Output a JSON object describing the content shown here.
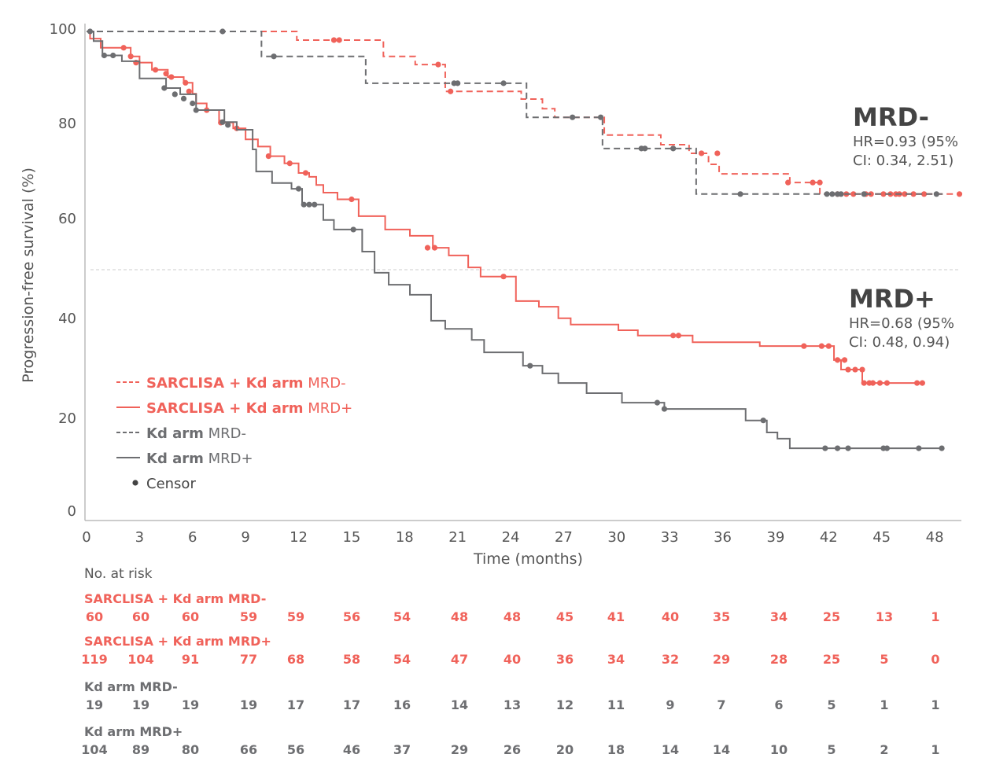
{
  "chart_data": {
    "type": "line",
    "subtype": "kaplan-meier step",
    "xlabel": "Time (months)",
    "ylabel": "Progression-free survival (%)",
    "xlim": [
      0,
      49.5
    ],
    "ylim": [
      0,
      100
    ],
    "xticks": [
      0,
      3,
      6,
      9,
      12,
      15,
      18,
      21,
      24,
      27,
      30,
      33,
      36,
      39,
      42,
      45,
      48
    ],
    "yticks": [
      0,
      20,
      40,
      60,
      80,
      100
    ],
    "reference_line_y": 50,
    "grid": false,
    "legend_placement": "bottom-left",
    "colors": {
      "sarclisa": "#f0625a",
      "kd": "#6d6e71"
    },
    "series": [
      {
        "name": "SARCLISA + Kd arm MRD-",
        "name_bold": "SARCLISA + Kd arm",
        "name_rest": " MRD-",
        "color": "#f0625a",
        "dashed": true,
        "steps": [
          [
            0,
            100
          ],
          [
            11.9,
            98.2
          ],
          [
            16.8,
            94.8
          ],
          [
            18.6,
            93.1
          ],
          [
            20.3,
            87.5
          ],
          [
            24.6,
            85.9
          ],
          [
            25.8,
            83.9
          ],
          [
            26.5,
            82.1
          ],
          [
            29.3,
            78.4
          ],
          [
            32.5,
            76.4
          ],
          [
            34.1,
            74.6
          ],
          [
            35.2,
            72.3
          ],
          [
            35.8,
            70.3
          ],
          [
            39.8,
            68.5
          ],
          [
            41.5,
            66.1
          ]
        ],
        "end": 49.4,
        "censors": [
          [
            14.0,
            98.2
          ],
          [
            14.3,
            98.2
          ],
          [
            19.9,
            93.1
          ],
          [
            20.6,
            87.5
          ],
          [
            34.8,
            74.6
          ],
          [
            35.7,
            74.6
          ],
          [
            39.7,
            68.5
          ],
          [
            41.1,
            68.5
          ],
          [
            41.5,
            68.5
          ],
          [
            42.5,
            66.1
          ],
          [
            43.0,
            66.1
          ],
          [
            43.4,
            66.1
          ],
          [
            44.1,
            66.1
          ],
          [
            44.4,
            66.1
          ],
          [
            45.1,
            66.1
          ],
          [
            45.5,
            66.1
          ],
          [
            45.8,
            66.1
          ],
          [
            46.0,
            66.1
          ],
          [
            46.3,
            66.1
          ],
          [
            46.8,
            66.1
          ],
          [
            47.4,
            66.1
          ],
          [
            49.4,
            66.1
          ]
        ]
      },
      {
        "name": "SARCLISA + Kd arm MRD+",
        "name_bold": "SARCLISA + Kd arm",
        "name_rest": " MRD+",
        "color": "#f0625a",
        "dashed": false,
        "steps": [
          [
            0,
            100
          ],
          [
            0.2,
            98.5
          ],
          [
            0.8,
            96.6
          ],
          [
            2.5,
            94.8
          ],
          [
            3.0,
            93.5
          ],
          [
            3.7,
            92
          ],
          [
            4.6,
            90.5
          ],
          [
            5.5,
            89.3
          ],
          [
            6.0,
            87
          ],
          [
            6.2,
            85
          ],
          [
            6.8,
            83.6
          ],
          [
            7.5,
            81
          ],
          [
            8.3,
            79.8
          ],
          [
            9.0,
            77.5
          ],
          [
            9.7,
            76
          ],
          [
            10.4,
            74
          ],
          [
            11.2,
            72.5
          ],
          [
            12.0,
            70.5
          ],
          [
            12.6,
            69.7
          ],
          [
            13.0,
            68
          ],
          [
            13.4,
            66.4
          ],
          [
            14.2,
            65
          ],
          [
            15.4,
            61.5
          ],
          [
            16.9,
            58.7
          ],
          [
            18.3,
            57.4
          ],
          [
            19.6,
            54.9
          ],
          [
            20.5,
            53.3
          ],
          [
            21.6,
            50.8
          ],
          [
            22.3,
            48.9
          ],
          [
            24.3,
            43.8
          ],
          [
            25.6,
            42.6
          ],
          [
            26.7,
            40.2
          ],
          [
            27.4,
            38.9
          ],
          [
            30.1,
            37.7
          ],
          [
            31.2,
            36.6
          ],
          [
            34.3,
            35.2
          ],
          [
            38.1,
            34.4
          ],
          [
            42.3,
            31.5
          ],
          [
            42.7,
            29.5
          ],
          [
            43.9,
            26.7
          ]
        ],
        "end": 47.3,
        "censors": [
          [
            2.1,
            96.6
          ],
          [
            2.5,
            94.8
          ],
          [
            2.8,
            93.5
          ],
          [
            3.9,
            92
          ],
          [
            4.5,
            91.2
          ],
          [
            4.8,
            90.5
          ],
          [
            5.6,
            89.3
          ],
          [
            5.8,
            87.5
          ],
          [
            6.8,
            83.6
          ],
          [
            7.6,
            81
          ],
          [
            8.5,
            79.8
          ],
          [
            10.3,
            74
          ],
          [
            11.5,
            72.5
          ],
          [
            12.4,
            70.5
          ],
          [
            15.0,
            65
          ],
          [
            19.3,
            54.9
          ],
          [
            19.7,
            54.9
          ],
          [
            23.6,
            48.9
          ],
          [
            33.2,
            36.6
          ],
          [
            33.5,
            36.6
          ],
          [
            40.6,
            34.4
          ],
          [
            41.6,
            34.4
          ],
          [
            42.0,
            34.4
          ],
          [
            42.5,
            31.5
          ],
          [
            42.9,
            31.5
          ],
          [
            43.1,
            29.5
          ],
          [
            43.5,
            29.5
          ],
          [
            43.9,
            29.5
          ],
          [
            44.0,
            26.7
          ],
          [
            44.3,
            26.7
          ],
          [
            44.5,
            26.7
          ],
          [
            44.9,
            26.7
          ],
          [
            45.3,
            26.7
          ],
          [
            47.0,
            26.7
          ],
          [
            47.3,
            26.7
          ]
        ]
      },
      {
        "name": "Kd arm MRD-",
        "name_bold": "Kd arm",
        "name_rest": " MRD-",
        "color": "#6d6e71",
        "dashed": true,
        "steps": [
          [
            0,
            100
          ],
          [
            9.9,
            94.8
          ],
          [
            15.8,
            89.2
          ],
          [
            24.9,
            82.1
          ],
          [
            29.2,
            75.6
          ],
          [
            34.5,
            66.1
          ]
        ],
        "end": 48.5,
        "censors": [
          [
            0.2,
            100
          ],
          [
            7.7,
            100
          ],
          [
            10.6,
            94.8
          ],
          [
            20.8,
            89.2
          ],
          [
            21.0,
            89.2
          ],
          [
            23.6,
            89.2
          ],
          [
            27.5,
            82.1
          ],
          [
            29.1,
            82.1
          ],
          [
            31.4,
            75.6
          ],
          [
            31.6,
            75.6
          ],
          [
            33.2,
            75.6
          ],
          [
            37.0,
            66.1
          ],
          [
            41.9,
            66.1
          ],
          [
            42.2,
            66.1
          ],
          [
            42.5,
            66.1
          ],
          [
            42.7,
            66.1
          ],
          [
            44.0,
            66.1
          ],
          [
            48.1,
            66.1
          ]
        ]
      },
      {
        "name": "Kd arm MRD+",
        "name_bold": "Kd arm",
        "name_rest": " MRD+",
        "color": "#6d6e71",
        "dashed": false,
        "steps": [
          [
            0,
            100
          ],
          [
            0.4,
            98
          ],
          [
            0.9,
            95
          ],
          [
            2.0,
            93.8
          ],
          [
            3.0,
            90.2
          ],
          [
            4.5,
            88.2
          ],
          [
            5.3,
            86.9
          ],
          [
            6.2,
            83.6
          ],
          [
            7.8,
            81.1
          ],
          [
            8.5,
            79.5
          ],
          [
            9.4,
            75.4
          ],
          [
            9.6,
            70.8
          ],
          [
            10.5,
            68.4
          ],
          [
            11.6,
            67.2
          ],
          [
            12.2,
            63.9
          ],
          [
            13.4,
            60.7
          ],
          [
            14.0,
            58.7
          ],
          [
            15.6,
            54.1
          ],
          [
            16.3,
            49.7
          ],
          [
            17.1,
            47.2
          ],
          [
            18.3,
            45.1
          ],
          [
            19.5,
            39.7
          ],
          [
            20.3,
            38
          ],
          [
            21.8,
            35.7
          ],
          [
            22.5,
            33.1
          ],
          [
            24.7,
            30.3
          ],
          [
            25.8,
            28.7
          ],
          [
            26.7,
            26.7
          ],
          [
            28.3,
            24.6
          ],
          [
            30.3,
            22.6
          ],
          [
            32.7,
            21.3
          ],
          [
            37.3,
            18.9
          ],
          [
            38.5,
            16.4
          ],
          [
            39.1,
            15.1
          ],
          [
            39.8,
            13.1
          ]
        ],
        "end": 48.4,
        "censors": [
          [
            1.0,
            95
          ],
          [
            1.5,
            95
          ],
          [
            4.4,
            88.2
          ],
          [
            5.0,
            86.9
          ],
          [
            5.5,
            86
          ],
          [
            6.0,
            85
          ],
          [
            6.2,
            83.6
          ],
          [
            7.7,
            81.1
          ],
          [
            8.0,
            80.5
          ],
          [
            12.0,
            67.2
          ],
          [
            12.3,
            63.9
          ],
          [
            12.6,
            63.9
          ],
          [
            12.9,
            63.9
          ],
          [
            15.1,
            58.7
          ],
          [
            25.1,
            30.3
          ],
          [
            32.3,
            22.6
          ],
          [
            32.7,
            21.3
          ],
          [
            38.3,
            18.9
          ],
          [
            41.8,
            13.1
          ],
          [
            42.5,
            13.1
          ],
          [
            43.1,
            13.1
          ],
          [
            45.1,
            13.1
          ],
          [
            45.3,
            13.1
          ],
          [
            47.1,
            13.1
          ],
          [
            48.4,
            13.1
          ]
        ]
      }
    ],
    "censor_label": "Censor",
    "annotations": [
      {
        "title": "MRD-",
        "line1": "HR=0.93 (95%",
        "line2": "CI: 0.34, 2.51)"
      },
      {
        "title": "MRD+",
        "line1": "HR=0.68 (95%",
        "line2": "CI: 0.48, 0.94)"
      }
    ],
    "risk_table": {
      "title": "No. at risk",
      "rows": [
        {
          "label": "SARCLISA + Kd arm MRD-",
          "color": "#f0625a",
          "values": [
            60,
            60,
            60,
            59,
            59,
            56,
            54,
            48,
            48,
            45,
            41,
            40,
            35,
            34,
            25,
            13,
            1
          ]
        },
        {
          "label": "SARCLISA + Kd arm MRD+",
          "color": "#f0625a",
          "values": [
            119,
            104,
            91,
            77,
            68,
            58,
            54,
            47,
            40,
            36,
            34,
            32,
            29,
            28,
            25,
            5,
            0
          ]
        },
        {
          "label": "Kd arm MRD-",
          "color": "#6d6e71",
          "values": [
            19,
            19,
            19,
            19,
            17,
            17,
            16,
            14,
            13,
            12,
            11,
            9,
            7,
            6,
            5,
            1,
            1
          ]
        },
        {
          "label": "Kd arm MRD+",
          "color": "#6d6e71",
          "values": [
            104,
            89,
            80,
            66,
            56,
            46,
            37,
            29,
            26,
            20,
            18,
            14,
            14,
            10,
            5,
            2,
            1
          ]
        }
      ]
    }
  }
}
